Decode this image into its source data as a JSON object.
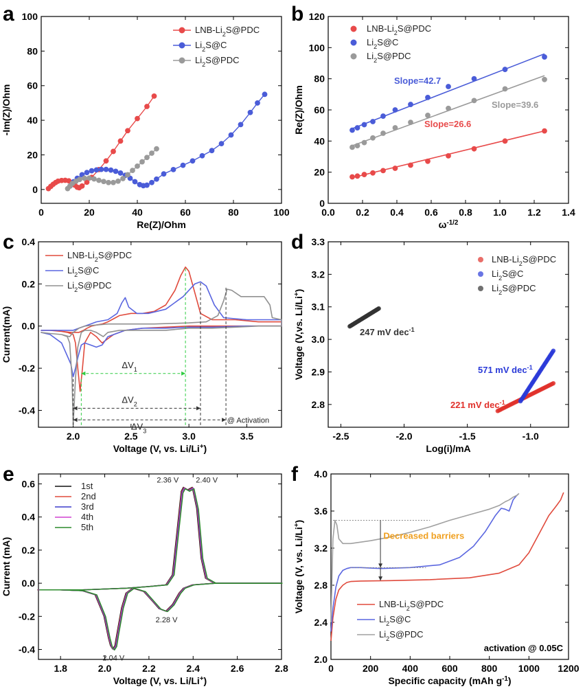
{
  "chart_data": [
    {
      "panel": "a",
      "type": "scatter",
      "xlabel": "Re(Z)/Ohm",
      "ylabel": "-Im(Z)/Ohm",
      "xlim": [
        0,
        100
      ],
      "ylim": [
        -8,
        100
      ],
      "xticks": [
        0,
        20,
        40,
        60,
        80,
        100
      ],
      "yticks": [
        0,
        20,
        40,
        60,
        80,
        100
      ],
      "legend_position": "top-right",
      "series": [
        {
          "name": "LNB-Li2S@PDC",
          "color": "#e84a4a",
          "x": [
            3,
            4,
            5,
            6,
            7,
            8.5,
            10,
            11.5,
            13,
            14,
            15,
            15.8,
            17,
            19,
            21,
            24,
            27,
            30,
            33,
            36,
            40,
            44,
            47
          ],
          "y": [
            0.5,
            1.8,
            3.0,
            4.0,
            4.8,
            5.2,
            5.3,
            5.0,
            3.8,
            2.5,
            1.3,
            1.0,
            2.0,
            4.2,
            7.0,
            11.5,
            16.5,
            22,
            28,
            34,
            41,
            48,
            54
          ]
        },
        {
          "name": "Li2S@C",
          "color": "#4a5cd8",
          "x": [
            12,
            13.5,
            15,
            17,
            19,
            21,
            23,
            25,
            27,
            29,
            31,
            33,
            35,
            37,
            39,
            41,
            42.5,
            44,
            46,
            48,
            51,
            55,
            59,
            63,
            67,
            71,
            75,
            79,
            83,
            87,
            90,
            93
          ],
          "y": [
            2,
            4.5,
            6.5,
            8.5,
            9.8,
            10.8,
            11.3,
            11.6,
            11.6,
            11.2,
            10.5,
            9.5,
            8.2,
            6.5,
            4.5,
            2.8,
            2.2,
            2.5,
            4.0,
            6.0,
            9.0,
            11.5,
            14.0,
            16.5,
            19.5,
            22.5,
            26.5,
            31.5,
            37.5,
            44.5,
            50,
            55
          ]
        },
        {
          "name": "Li2S@PDC",
          "color": "#9a9a9a",
          "x": [
            11,
            12,
            13,
            14.5,
            16,
            18,
            20,
            22,
            24,
            26,
            28,
            30,
            32,
            34,
            36,
            38,
            40,
            42,
            44,
            46,
            48
          ],
          "y": [
            0.5,
            2.0,
            3.5,
            4.8,
            5.8,
            6.5,
            6.6,
            6.1,
            5.3,
            4.6,
            4.0,
            4.0,
            4.8,
            6.3,
            8.5,
            11,
            13.5,
            16,
            18.5,
            21,
            23.5
          ]
        }
      ]
    },
    {
      "panel": "b",
      "type": "scatter",
      "xlabel": "ω",
      "xlabel_sup": "-1/2",
      "ylabel": "Re(Z)/Ohm",
      "xlim": [
        0,
        1.4
      ],
      "ylim": [
        0,
        120
      ],
      "xticks": [
        "0.0",
        "0.2",
        "0.4",
        "0.6",
        "0.8",
        "1.0",
        "1.2",
        "1.4"
      ],
      "yticks": [
        0,
        20,
        40,
        60,
        80,
        100,
        120
      ],
      "legend_position": "top-left",
      "x": [
        0.14,
        0.17,
        0.21,
        0.26,
        0.32,
        0.39,
        0.48,
        0.58,
        0.7,
        0.85,
        1.03,
        1.26
      ],
      "series": [
        {
          "name": "LNB-Li2S@PDC",
          "color": "#e84a4a",
          "y": [
            17,
            17.5,
            18.5,
            19.5,
            21,
            22.5,
            24.5,
            27,
            30.5,
            35,
            40,
            46.5
          ],
          "fit": [
            [
              0.14,
              16.5
            ],
            [
              1.26,
              46.5
            ]
          ],
          "slope_label": "Slope=26.6"
        },
        {
          "name": "Li2S@C",
          "color": "#4a5cd8",
          "y": [
            47,
            48.5,
            50.5,
            52.5,
            56,
            60,
            63.5,
            68,
            75,
            80,
            86,
            94
          ],
          "fit": [
            [
              0.14,
              48
            ],
            [
              1.26,
              96
            ]
          ],
          "slope_label": "Slope=42.7"
        },
        {
          "name": "Li2S@PDC",
          "color": "#9a9a9a",
          "y": [
            36,
            37,
            39,
            42,
            45,
            48.5,
            52,
            56.5,
            61,
            66,
            73.5,
            79.5
          ],
          "fit": [
            [
              0.14,
              37
            ],
            [
              1.26,
              82
            ]
          ],
          "slope_label": "Slope=39.6"
        }
      ]
    },
    {
      "panel": "c",
      "type": "line",
      "xlabel": "Voltage (V, vs. Li/Li",
      "xlabel_sup": "+",
      "xlabel_end": ")",
      "ylabel": "Current(mA)",
      "xlim": [
        1.7,
        3.8
      ],
      "ylim": [
        -0.48,
        0.4
      ],
      "xticks": [
        "2.0",
        "2.5",
        "3.0",
        "3.5"
      ],
      "yticks": [
        "-0.4",
        "-0.2",
        "0.0",
        "0.2",
        "0.4"
      ],
      "legend_position": "top-left",
      "annotations": {
        "dv1": "ΔV",
        "dv1_sub": "1",
        "dv2": "ΔV",
        "dv2_sub": "2",
        "dv3": "ΔV",
        "dv3_sub": "3",
        "activation": "@ Activation"
      },
      "series": [
        {
          "name": "LNB-Li2S@PDC",
          "color": "#e04a3c",
          "x": [
            1.72,
            1.8,
            1.9,
            1.98,
            2.02,
            2.05,
            2.07,
            2.09,
            2.12,
            2.16,
            2.2,
            2.25,
            2.3,
            2.35,
            2.4,
            2.5,
            2.6,
            2.7,
            2.8,
            2.88,
            2.93,
            2.97,
            3.0,
            3.05,
            3.1,
            3.2,
            3.4,
            3.6,
            3.8,
            3.8,
            3.6,
            3.4,
            3.2,
            3.0,
            2.8,
            2.6,
            2.45,
            2.35,
            2.3,
            2.25,
            2.2,
            2.15,
            2.1,
            2.08,
            2.06,
            2.04,
            2.02,
            2.0,
            1.95,
            1.85,
            1.72
          ],
          "y": [
            -0.02,
            -0.02,
            -0.025,
            -0.03,
            -0.03,
            -0.03,
            -0.025,
            -0.02,
            -0.01,
            0.0,
            0.005,
            0.01,
            0.02,
            0.035,
            0.05,
            0.06,
            0.06,
            0.07,
            0.1,
            0.17,
            0.24,
            0.28,
            0.26,
            0.16,
            0.06,
            0.03,
            0.03,
            0.02,
            0.02,
            0.0,
            0.0,
            0.0,
            0.0,
            0.0,
            -0.005,
            -0.01,
            -0.02,
            -0.04,
            -0.06,
            -0.08,
            -0.05,
            -0.03,
            -0.08,
            -0.2,
            -0.31,
            -0.2,
            -0.08,
            -0.04,
            -0.03,
            -0.02,
            -0.02
          ]
        },
        {
          "name": "Li2S@C",
          "color": "#5a66e0",
          "x": [
            1.72,
            1.8,
            1.9,
            2.0,
            2.05,
            2.1,
            2.15,
            2.2,
            2.3,
            2.38,
            2.42,
            2.45,
            2.48,
            2.55,
            2.65,
            2.8,
            2.95,
            3.05,
            3.1,
            3.15,
            3.22,
            3.3,
            3.5,
            3.8,
            3.8,
            3.5,
            3.2,
            3.0,
            2.8,
            2.6,
            2.45,
            2.3,
            2.25,
            2.2,
            2.15,
            2.1,
            2.07,
            2.04,
            2.02,
            2.0,
            1.98,
            1.9,
            1.8,
            1.72
          ],
          "y": [
            -0.02,
            -0.02,
            -0.02,
            -0.02,
            -0.01,
            0.0,
            0.01,
            0.02,
            0.03,
            0.06,
            0.11,
            0.135,
            0.09,
            0.06,
            0.06,
            0.08,
            0.14,
            0.2,
            0.21,
            0.19,
            0.1,
            0.04,
            0.03,
            0.03,
            0.0,
            0.0,
            -0.005,
            -0.005,
            -0.01,
            -0.01,
            -0.02,
            -0.05,
            -0.09,
            -0.1,
            -0.09,
            -0.08,
            -0.09,
            -0.15,
            -0.2,
            -0.24,
            -0.18,
            -0.08,
            -0.04,
            -0.03
          ]
        },
        {
          "name": "Li2S@PDC",
          "color": "#909090",
          "x": [
            1.72,
            1.8,
            1.9,
            1.97,
            2.0,
            2.05,
            2.1,
            2.2,
            2.3,
            2.5,
            2.7,
            3.0,
            3.15,
            3.25,
            3.3,
            3.33,
            3.37,
            3.45,
            3.55,
            3.65,
            3.7,
            3.72,
            3.8,
            3.8,
            3.6,
            3.4,
            3.2,
            3.0,
            2.8,
            2.6,
            2.4,
            2.3,
            2.26,
            2.2,
            2.15,
            2.1,
            2.07,
            2.04,
            2.02,
            2.0,
            1.99,
            1.97,
            1.95,
            1.9,
            1.8,
            1.72
          ],
          "y": [
            -0.03,
            -0.035,
            -0.04,
            -0.05,
            -0.03,
            -0.01,
            0.0,
            0.005,
            0.01,
            0.01,
            0.01,
            0.015,
            0.02,
            0.05,
            0.12,
            0.175,
            0.17,
            0.14,
            0.14,
            0.14,
            0.1,
            0.04,
            0.03,
            0.0,
            0.0,
            -0.005,
            -0.01,
            -0.01,
            -0.02,
            -0.02,
            -0.02,
            -0.03,
            -0.05,
            -0.03,
            -0.02,
            -0.02,
            -0.03,
            -0.1,
            -0.25,
            -0.47,
            -0.25,
            -0.08,
            -0.05,
            -0.04,
            -0.035,
            -0.03
          ]
        }
      ]
    },
    {
      "panel": "d",
      "type": "scatter",
      "xlabel": "Log(i)/mA",
      "ylabel": "Voltage (V,vs. Li/Li",
      "ylabel_sup": "+",
      "ylabel_end": ")",
      "xlim": [
        -2.6,
        -0.7
      ],
      "ylim": [
        2.73,
        3.3
      ],
      "xticks": [
        "-2.5",
        "-2.0",
        "-1.5",
        "-1.0"
      ],
      "yticks": [
        "2.8",
        "2.9",
        "3.0",
        "3.1",
        "3.2",
        "3.3"
      ],
      "legend_position": "top-right",
      "series": [
        {
          "name": "LNB-Li2S@PDC",
          "color": "#e0302a",
          "segment": [
            [
              -1.26,
              2.78
            ],
            [
              -0.82,
              2.865
            ]
          ],
          "slope_label": "221 mV dec",
          "slope_sup": "-1"
        },
        {
          "name": "Li2S@C",
          "color": "#2a3ad8",
          "segment": [
            [
              -1.08,
              2.81
            ],
            [
              -0.82,
              2.965
            ]
          ],
          "slope_label": "571 mV dec",
          "slope_sup": "-1"
        },
        {
          "name": "Li2S@PDC",
          "color": "#333333",
          "segment": [
            [
              -2.43,
              3.04
            ],
            [
              -2.2,
              3.095
            ]
          ],
          "slope_label": "247 mV dec",
          "slope_sup": "-1"
        }
      ]
    },
    {
      "panel": "e",
      "type": "line",
      "xlabel": "Voltage (V, vs. Li/Li",
      "xlabel_sup": "+",
      "xlabel_end": ")",
      "ylabel": "Current (mA)",
      "xlim": [
        1.7,
        2.8
      ],
      "ylim": [
        -0.46,
        0.66
      ],
      "xticks": [
        "1.8",
        "2.0",
        "2.2",
        "2.4",
        "2.6",
        "2.8"
      ],
      "yticks": [
        "-0.4",
        "-0.2",
        "0.0",
        "0.2",
        "0.4",
        "0.6"
      ],
      "legend_position": "top-left",
      "peak_labels": [
        {
          "x": 2.36,
          "y": 0.575,
          "text": "2.36 V"
        },
        {
          "x": 2.4,
          "y": 0.575,
          "text": "2.40 V"
        },
        {
          "x": 2.28,
          "y": -0.17,
          "text": "2.28 V"
        },
        {
          "x": 2.04,
          "y": -0.4,
          "text": "2.04 V"
        }
      ],
      "series": [
        {
          "name": "1st",
          "color": "#111111"
        },
        {
          "name": "2nd",
          "color": "#e04a3c"
        },
        {
          "name": "3rd",
          "color": "#3a3acc"
        },
        {
          "name": "4th",
          "color": "#d040d0"
        },
        {
          "name": "5th",
          "color": "#2a8a2a"
        }
      ]
    },
    {
      "panel": "f",
      "type": "line",
      "xlabel": "Specific capacity (mAh g",
      "xlabel_sup": "-1",
      "xlabel_end": ")",
      "ylabel": "Voltage (V, vs. Li/Li",
      "ylabel_sup": "+",
      "ylabel_end": ")",
      "xlim": [
        0,
        1200
      ],
      "ylim": [
        2.0,
        4.0
      ],
      "xticks": [
        0,
        200,
        400,
        600,
        800,
        1000,
        1200
      ],
      "yticks": [
        "2.0",
        "2.4",
        "2.8",
        "3.2",
        "3.6",
        "4.0"
      ],
      "legend_position": "bottom-left",
      "annotation": "Decreased barriers",
      "annotation_color": "#f0a020",
      "condition": "activation @ 0.05C",
      "series": [
        {
          "name": "LNB-Li2S@PDC",
          "color": "#e04a3c",
          "x": [
            0,
            10,
            25,
            40,
            60,
            80,
            100,
            150,
            300,
            500,
            700,
            850,
            950,
            1000,
            1050,
            1100,
            1140,
            1160,
            1175
          ],
          "y": [
            2.2,
            2.45,
            2.65,
            2.75,
            2.8,
            2.83,
            2.84,
            2.845,
            2.85,
            2.86,
            2.88,
            2.93,
            3.02,
            3.15,
            3.35,
            3.55,
            3.66,
            3.72,
            3.8
          ]
        },
        {
          "name": "Li2S@C",
          "color": "#5a66e0",
          "x": [
            0,
            10,
            25,
            40,
            60,
            80,
            100,
            150,
            250,
            400,
            550,
            650,
            720,
            780,
            830,
            860,
            880,
            900,
            920,
            935,
            945
          ],
          "y": [
            2.3,
            2.55,
            2.78,
            2.9,
            2.96,
            2.98,
            2.99,
            2.99,
            2.98,
            2.99,
            3.02,
            3.1,
            3.22,
            3.38,
            3.55,
            3.63,
            3.62,
            3.6,
            3.72,
            3.76,
            3.78
          ]
        },
        {
          "name": "Li2S@PDC",
          "color": "#a0a0a0",
          "x": [
            0,
            10,
            20,
            30,
            40,
            60,
            100,
            200,
            300,
            400,
            500,
            600,
            700,
            800,
            850,
            880,
            900,
            920,
            940,
            950
          ],
          "y": [
            2.4,
            3.3,
            3.5,
            3.45,
            3.3,
            3.25,
            3.25,
            3.28,
            3.32,
            3.37,
            3.43,
            3.5,
            3.56,
            3.62,
            3.66,
            3.7,
            3.72,
            3.75,
            3.77,
            3.79
          ]
        }
      ]
    }
  ]
}
